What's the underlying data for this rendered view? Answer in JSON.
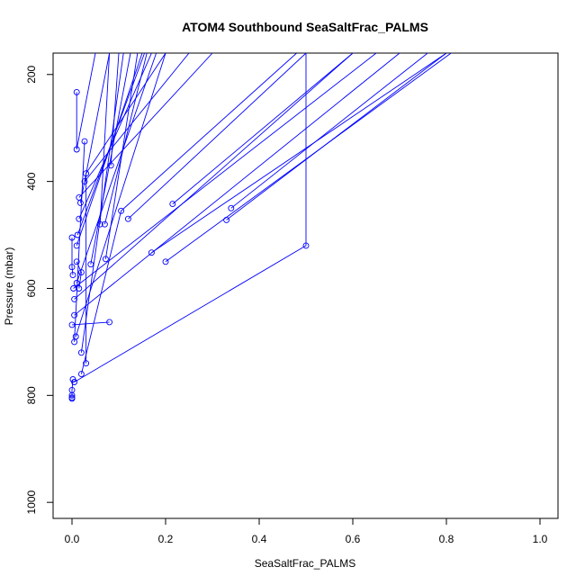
{
  "chart_data": {
    "type": "line",
    "title": "ATOM4 Southbound SeaSaltFrac_PALMS",
    "xlabel": "SeaSaltFrac_PALMS",
    "ylabel": "Pressure (mbar)",
    "xlim": [
      0,
      1
    ],
    "ylim": [
      1030,
      160
    ],
    "y_reversed": true,
    "grid": false,
    "legend": "none",
    "series_color": "#0000ff",
    "x_ticks": [
      "0.0",
      "0.2",
      "0.4",
      "0.6",
      "0.8",
      "1.0"
    ],
    "y_ticks": [
      "200",
      "400",
      "600",
      "800",
      "1000"
    ],
    "series": [
      {
        "x": [
          0.01,
          0.01,
          0.05
        ],
        "y": [
          233,
          340,
          160
        ]
      },
      {
        "x": [
          0.005,
          0.027
        ],
        "y": [
          700,
          325
        ]
      },
      {
        "x": [
          0.02,
          0.11
        ],
        "y": [
          720,
          160
        ]
      },
      {
        "x": [
          0.03,
          0.03,
          0.2
        ],
        "y": [
          740,
          385,
          160
        ]
      },
      {
        "x": [
          0.027,
          0.25
        ],
        "y": [
          400,
          160
        ]
      },
      {
        "x": [
          0.015,
          0.3
        ],
        "y": [
          430,
          160
        ]
      },
      {
        "x": [
          0.083,
          0.1
        ],
        "y": [
          370,
          160
        ]
      },
      {
        "x": [
          0.02,
          0.105,
          0.48
        ],
        "y": [
          760,
          455,
          160
        ]
      },
      {
        "x": [
          0.12,
          0.5
        ],
        "y": [
          470,
          160
        ]
      },
      {
        "x": [
          0.215,
          0.6
        ],
        "y": [
          442,
          160
        ]
      },
      {
        "x": [
          0.17,
          0.8
        ],
        "y": [
          533,
          160
        ]
      },
      {
        "x": [
          0.2,
          0.81
        ],
        "y": [
          550,
          160
        ]
      },
      {
        "x": [
          0.33,
          0.8
        ],
        "y": [
          472,
          160
        ]
      },
      {
        "x": [
          0.34,
          0.76
        ],
        "y": [
          450,
          160
        ]
      },
      {
        "x": [
          0.005,
          0.5,
          0.5
        ],
        "y": [
          775,
          520,
          160
        ]
      },
      {
        "x": [
          0.072,
          0.14
        ],
        "y": [
          545,
          160
        ]
      },
      {
        "x": [
          0.08,
          0.0
        ],
        "y": [
          663,
          668
        ]
      },
      {
        "x": [
          0.07,
          0.16
        ],
        "y": [
          480,
          160
        ]
      },
      {
        "x": [
          0.06,
          0.08
        ],
        "y": [
          480,
          160
        ]
      },
      {
        "x": [
          0.04,
          0.125
        ],
        "y": [
          555,
          160
        ]
      },
      {
        "x": [
          0.01,
          0.15
        ],
        "y": [
          520,
          160
        ]
      },
      {
        "x": [
          0.012,
          0.155
        ],
        "y": [
          500,
          160
        ]
      },
      {
        "x": [
          0.015,
          0.17
        ],
        "y": [
          470,
          160
        ]
      },
      {
        "x": [
          0.018,
          0.08
        ],
        "y": [
          440,
          160
        ]
      },
      {
        "x": [
          0.01,
          0.18
        ],
        "y": [
          590,
          160
        ]
      },
      {
        "x": [
          0.005,
          0.6
        ],
        "y": [
          620,
          160
        ]
      },
      {
        "x": [
          0.005,
          0.7
        ],
        "y": [
          650,
          160
        ]
      },
      {
        "x": [
          0.003,
          0.65
        ],
        "y": [
          600,
          160
        ]
      },
      {
        "x": [
          0.008,
          0.2
        ],
        "y": [
          690,
          160
        ]
      },
      {
        "x": [
          0.002,
          0.0,
          0.0,
          0.0,
          0.0
        ],
        "y": [
          770,
          790,
          800,
          804,
          806
        ]
      },
      {
        "x": [
          0.0,
          0.0,
          0.002
        ],
        "y": [
          505,
          560,
          575
        ]
      },
      {
        "x": [
          0.01,
          0.02,
          0.015
        ],
        "y": [
          550,
          570,
          600
        ]
      }
    ]
  }
}
